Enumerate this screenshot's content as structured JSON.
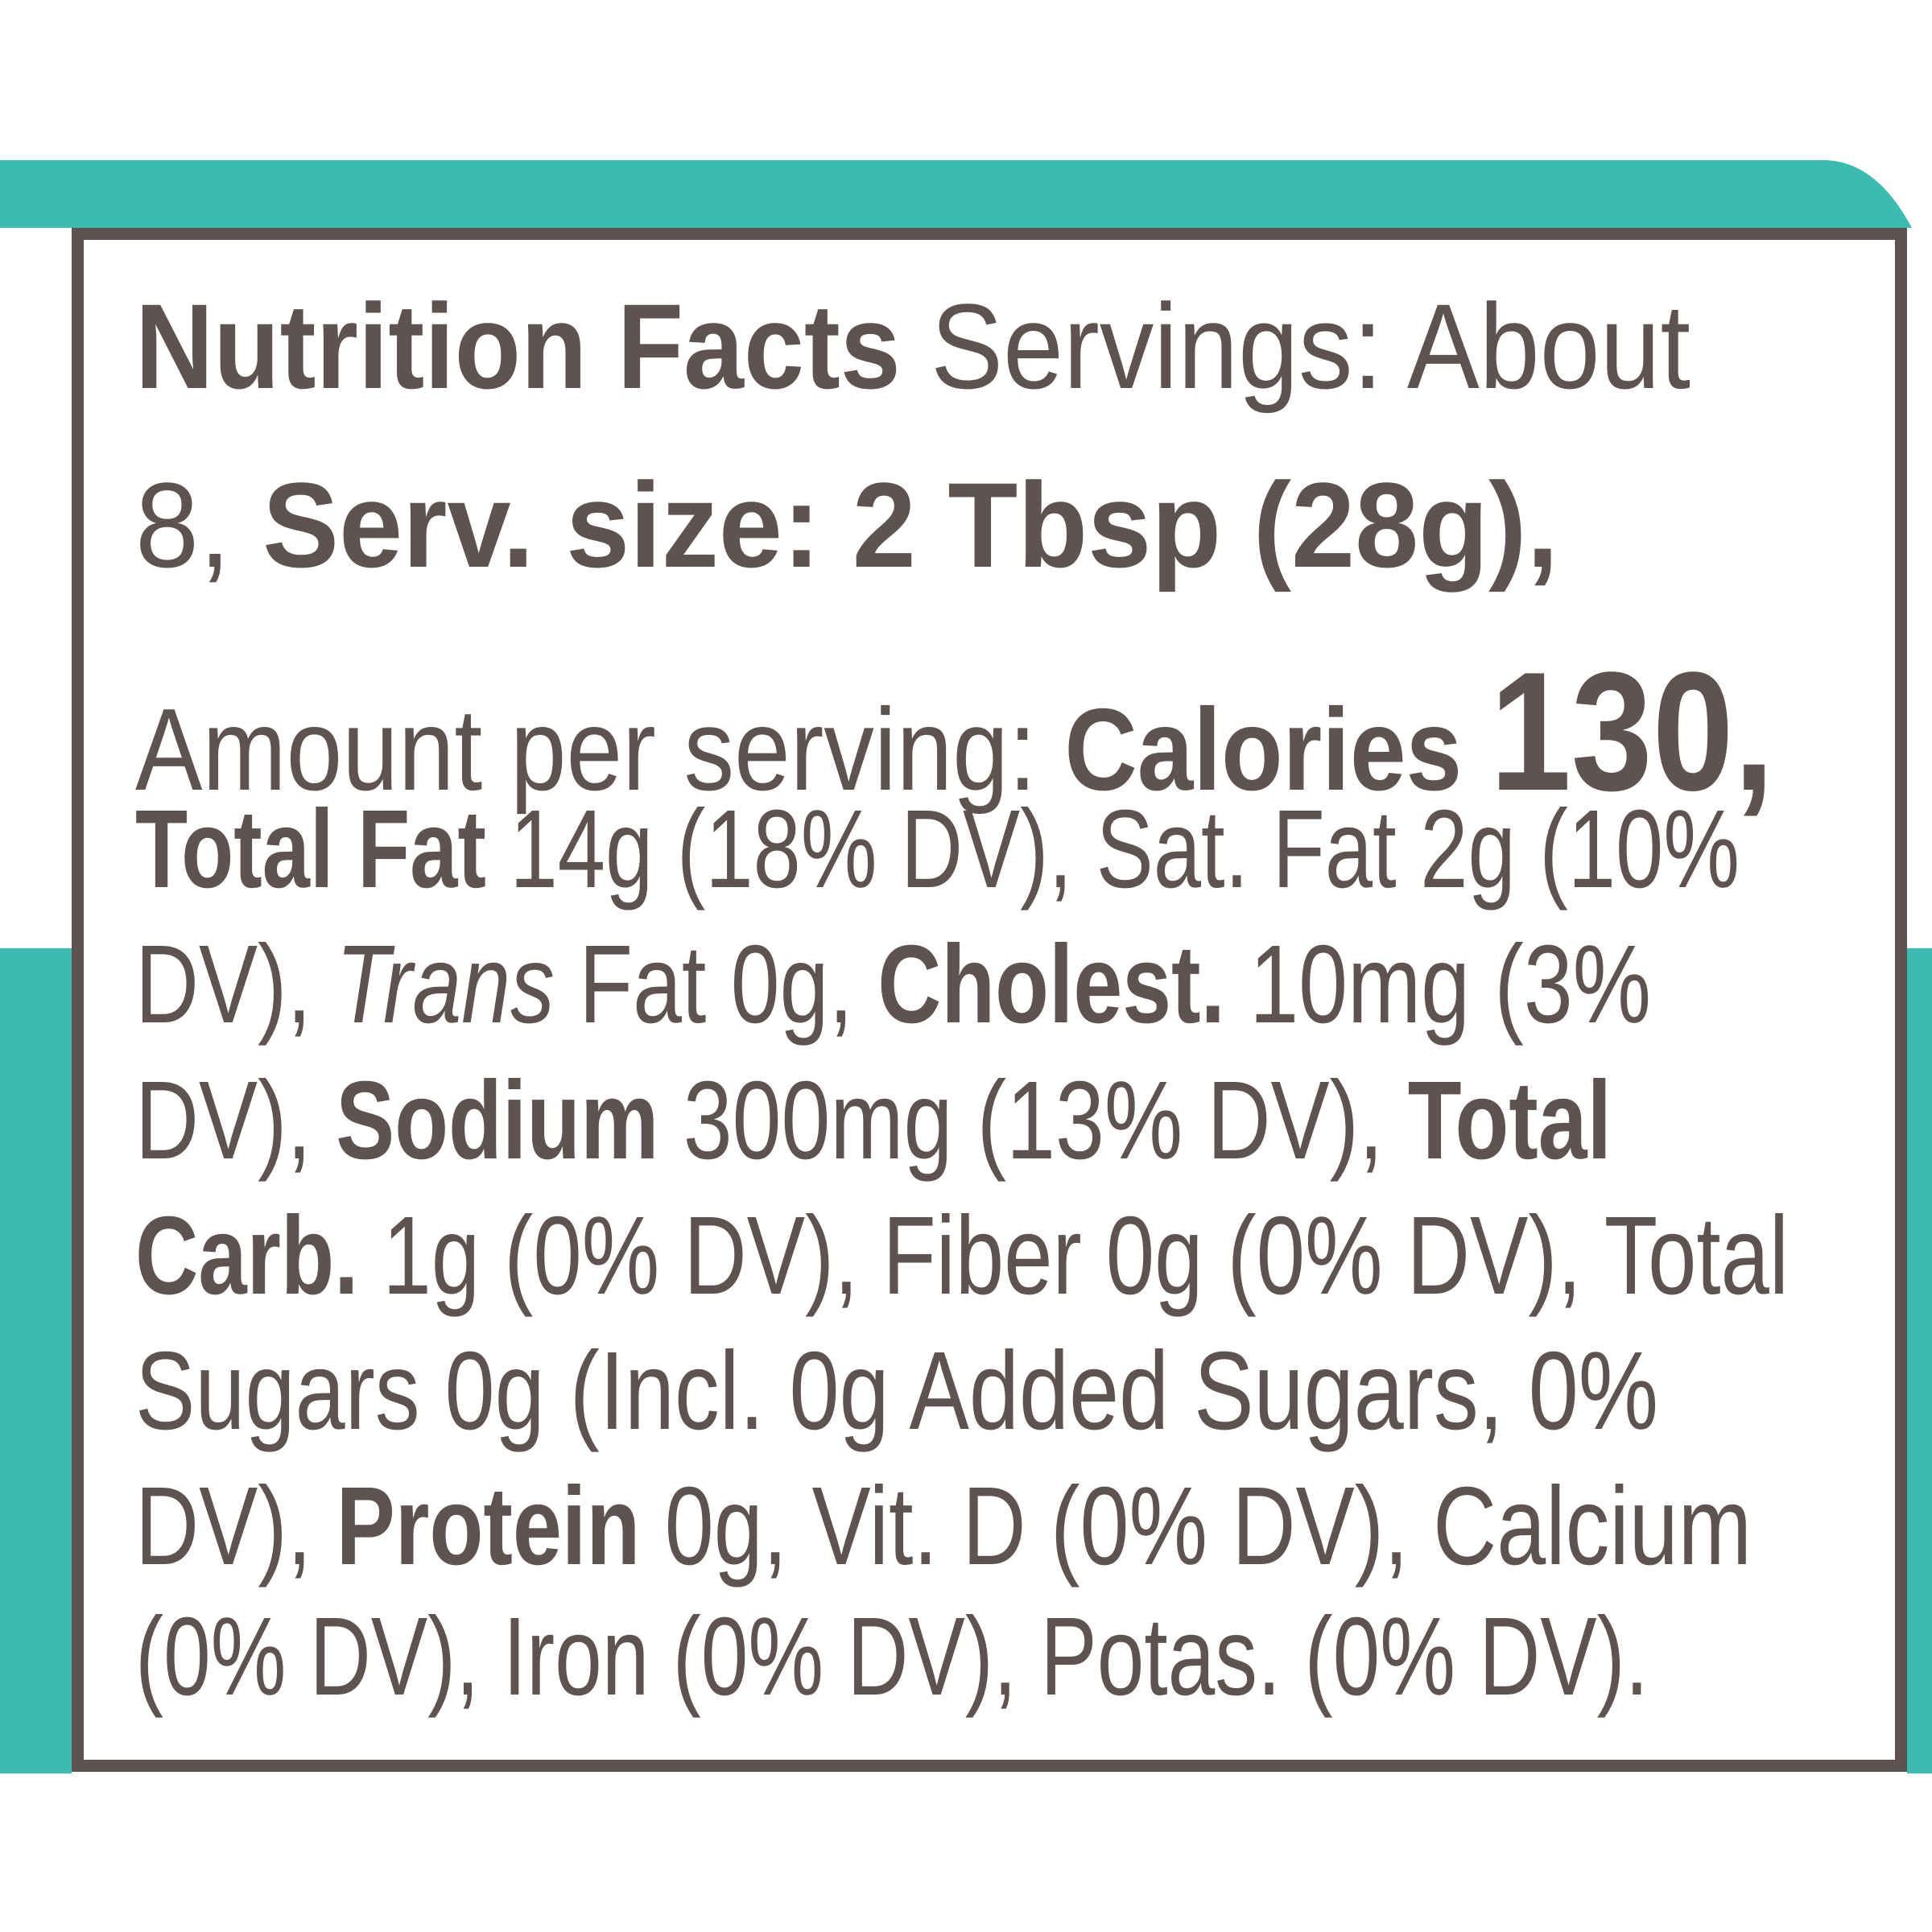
{
  "label": {
    "lines": [
      [
        "Nutrition Facts",
        "Servings: About"
      ],
      [
        "8,",
        "Serv. size: 2 Tbsp (28g),"
      ],
      [
        "Amount per serving:",
        "Calories",
        "130,"
      ],
      [
        "Total Fat",
        "14g (18% DV), Sat. Fat 2g (10%"
      ],
      [
        "DV),",
        "Trans",
        "Fat 0g,",
        "Cholest.",
        "10mg (3%"
      ],
      [
        "DV),",
        "Sodium",
        "300mg (13% DV),",
        "Total"
      ],
      [
        "Carb.",
        "1g (0% DV), Fiber 0g (0% DV), Total"
      ],
      [
        "Sugars 0g (Incl. 0g Added Sugars, 0%"
      ],
      [
        "DV),",
        "Protein",
        "0g, Vit. D (0% DV), Calcium"
      ],
      [
        "(0% DV), Iron (0% DV), Potas. (0% DV)."
      ]
    ]
  }
}
